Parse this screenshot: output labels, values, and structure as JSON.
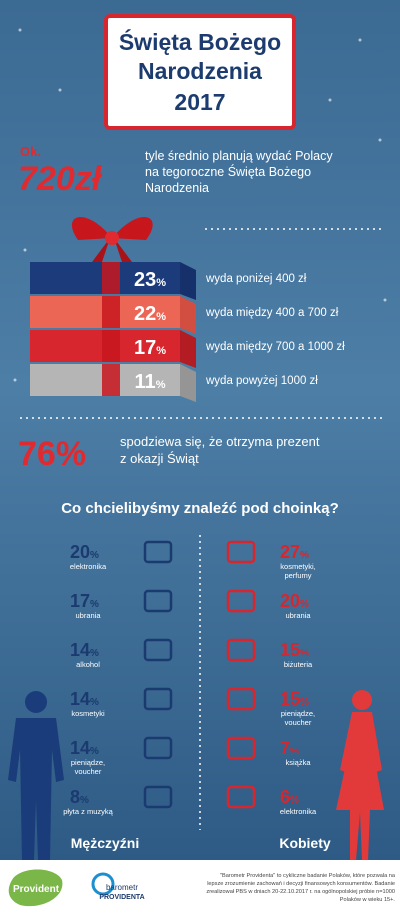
{
  "header": {
    "lines": [
      "Święta Bożego",
      "Narodzenia",
      "2017"
    ]
  },
  "spending": {
    "prefix": "Ok.",
    "amount": "720zł",
    "lines": [
      "tyle średnio planują wydać Polacy",
      "na tegoroczne Święta Bożego",
      "Narodzenia"
    ]
  },
  "percent_sign": "%",
  "gift_tiers": [
    {
      "value": 23,
      "label": "wyda poniżej 400 zł"
    },
    {
      "value": 22,
      "label": "wyda między 400 a 700 zł"
    },
    {
      "value": 17,
      "label": "wyda między 700 a 1000 zł"
    },
    {
      "value": 11,
      "label": "wyda powyżej 1000 zł"
    }
  ],
  "expectation": {
    "value": 76,
    "lines": [
      "spodziewa się, że otrzyma prezent",
      "z okazji Świąt"
    ]
  },
  "question": "Co chcielibyśmy znaleźć pod choinką?",
  "men": {
    "title": "Mężczyźni",
    "items": [
      {
        "value": 20,
        "label": [
          "elektronika"
        ]
      },
      {
        "value": 17,
        "label": [
          "ubrania"
        ]
      },
      {
        "value": 14,
        "label": [
          "alkohol"
        ]
      },
      {
        "value": 14,
        "label": [
          "kosmetyki"
        ]
      },
      {
        "value": 14,
        "label": [
          "pieniądze,",
          "voucher"
        ]
      },
      {
        "value": 8,
        "label": [
          "płyta z muzyką"
        ]
      }
    ]
  },
  "women": {
    "title": "Kobiety",
    "items": [
      {
        "value": 27,
        "label": [
          "kosmetyki,",
          "perfumy"
        ]
      },
      {
        "value": 20,
        "label": [
          "ubrania"
        ]
      },
      {
        "value": 15,
        "label": [
          "biżuteria"
        ]
      },
      {
        "value": 15,
        "label": [
          "pieniądze,",
          "voucher"
        ]
      },
      {
        "value": 7,
        "label": [
          "książka"
        ]
      },
      {
        "value": 6,
        "label": [
          "elektronika"
        ]
      }
    ]
  },
  "footer": {
    "logo": "Provident",
    "barometer_logo": [
      "barometr",
      "PROVIDENTA"
    ],
    "note": [
      "\"Barometr Providenta\" to cykliczne badanie Polaków, które pozwala na",
      "lepsze zrozumienie zachowań i decyzji finansowych konsumentów. Badanie",
      "zrealizował PBS w dniach 20-22.10.2017 r. na ogólnopolskiej próbie n=1000",
      "Polaków w wieku 15+."
    ]
  }
}
